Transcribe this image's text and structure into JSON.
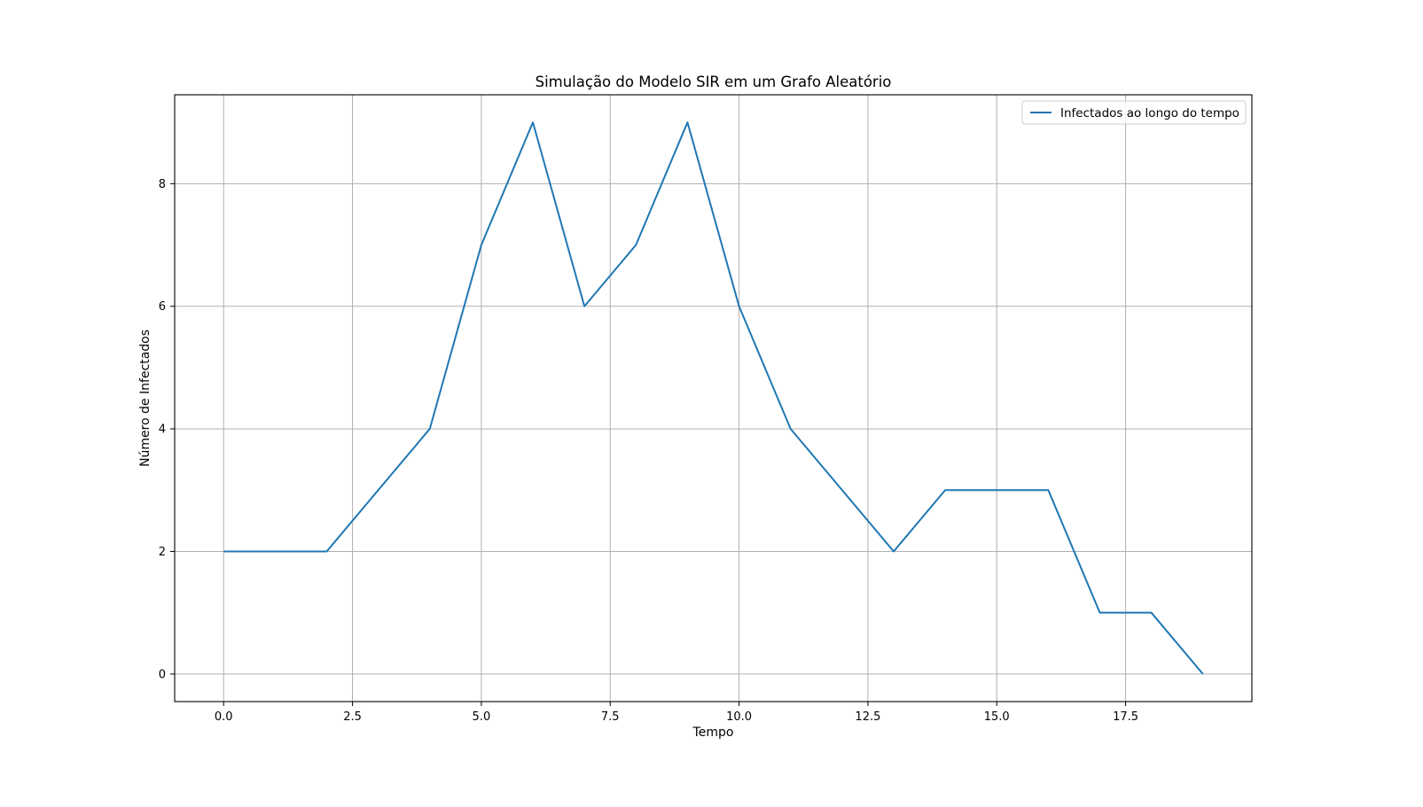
{
  "chart_data": {
    "type": "line",
    "title": "Simulação do Modelo SIR em um Grafo Aleatório",
    "xlabel": "Tempo",
    "ylabel": "Número de Infectados",
    "xlim": [
      -0.95,
      19.95
    ],
    "ylim": [
      -0.45,
      9.45
    ],
    "xticks": [
      0.0,
      2.5,
      5.0,
      7.5,
      10.0,
      12.5,
      15.0,
      17.5
    ],
    "xtick_labels": [
      "0.0",
      "2.5",
      "5.0",
      "7.5",
      "10.0",
      "12.5",
      "15.0",
      "17.5"
    ],
    "yticks": [
      0,
      2,
      4,
      6,
      8
    ],
    "ytick_labels": [
      "0",
      "2",
      "4",
      "6",
      "8"
    ],
    "grid": true,
    "legend_position": "top-right",
    "series": [
      {
        "name": "Infectados ao longo do tempo",
        "color": "#1f77b4",
        "x": [
          0,
          1,
          2,
          3,
          4,
          5,
          6,
          7,
          8,
          9,
          10,
          11,
          12,
          13,
          14,
          15,
          16,
          17,
          18,
          19
        ],
        "y": [
          2,
          2,
          2,
          3,
          4,
          7,
          9,
          6,
          7,
          9,
          6,
          4,
          3,
          2,
          3,
          3,
          3,
          1,
          1,
          0
        ]
      }
    ]
  }
}
